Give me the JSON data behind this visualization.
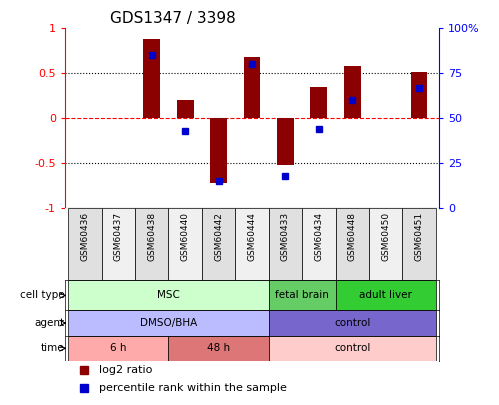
{
  "title": "GDS1347 / 3398",
  "samples": [
    "GSM60436",
    "GSM60437",
    "GSM60438",
    "GSM60440",
    "GSM60442",
    "GSM60444",
    "GSM60433",
    "GSM60434",
    "GSM60448",
    "GSM60450",
    "GSM60451"
  ],
  "log2_ratio": [
    0.0,
    0.0,
    0.88,
    0.2,
    -0.72,
    0.68,
    -0.52,
    0.35,
    0.58,
    0.0,
    0.52
  ],
  "percentile_rank": [
    null,
    null,
    85,
    43,
    15,
    80,
    18,
    44,
    60,
    null,
    67
  ],
  "bar_color": "#8B0000",
  "dot_color": "#0000CC",
  "ylim": [
    -1,
    1
  ],
  "y2lim": [
    0,
    100
  ],
  "yticks": [
    -1,
    -0.5,
    0,
    0.5,
    1
  ],
  "y2ticks": [
    0,
    25,
    50,
    75,
    100
  ],
  "ytick_labels": [
    "-1",
    "-0.5",
    "0",
    "0.5",
    "1"
  ],
  "y2tick_labels": [
    "0",
    "25",
    "50",
    "75",
    "100%"
  ],
  "cell_type_groups": [
    {
      "label": "MSC",
      "start": 0,
      "end": 5,
      "color": "#ccffcc"
    },
    {
      "label": "fetal brain",
      "start": 6,
      "end": 7,
      "color": "#66cc66"
    },
    {
      "label": "adult liver",
      "start": 8,
      "end": 10,
      "color": "#33cc33"
    }
  ],
  "agent_groups": [
    {
      "label": "DMSO/BHA",
      "start": 0,
      "end": 5,
      "color": "#bbbbff"
    },
    {
      "label": "control",
      "start": 6,
      "end": 10,
      "color": "#7766cc"
    }
  ],
  "time_groups": [
    {
      "label": "6 h",
      "start": 0,
      "end": 2,
      "color": "#ffaaaa"
    },
    {
      "label": "48 h",
      "start": 3,
      "end": 5,
      "color": "#dd7777"
    },
    {
      "label": "control",
      "start": 6,
      "end": 10,
      "color": "#ffcccc"
    }
  ],
  "row_labels": [
    "cell type",
    "agent",
    "time"
  ],
  "legend_items": [
    {
      "label": "log2 ratio",
      "color": "#8B0000"
    },
    {
      "label": "percentile rank within the sample",
      "color": "#0000CC"
    }
  ]
}
